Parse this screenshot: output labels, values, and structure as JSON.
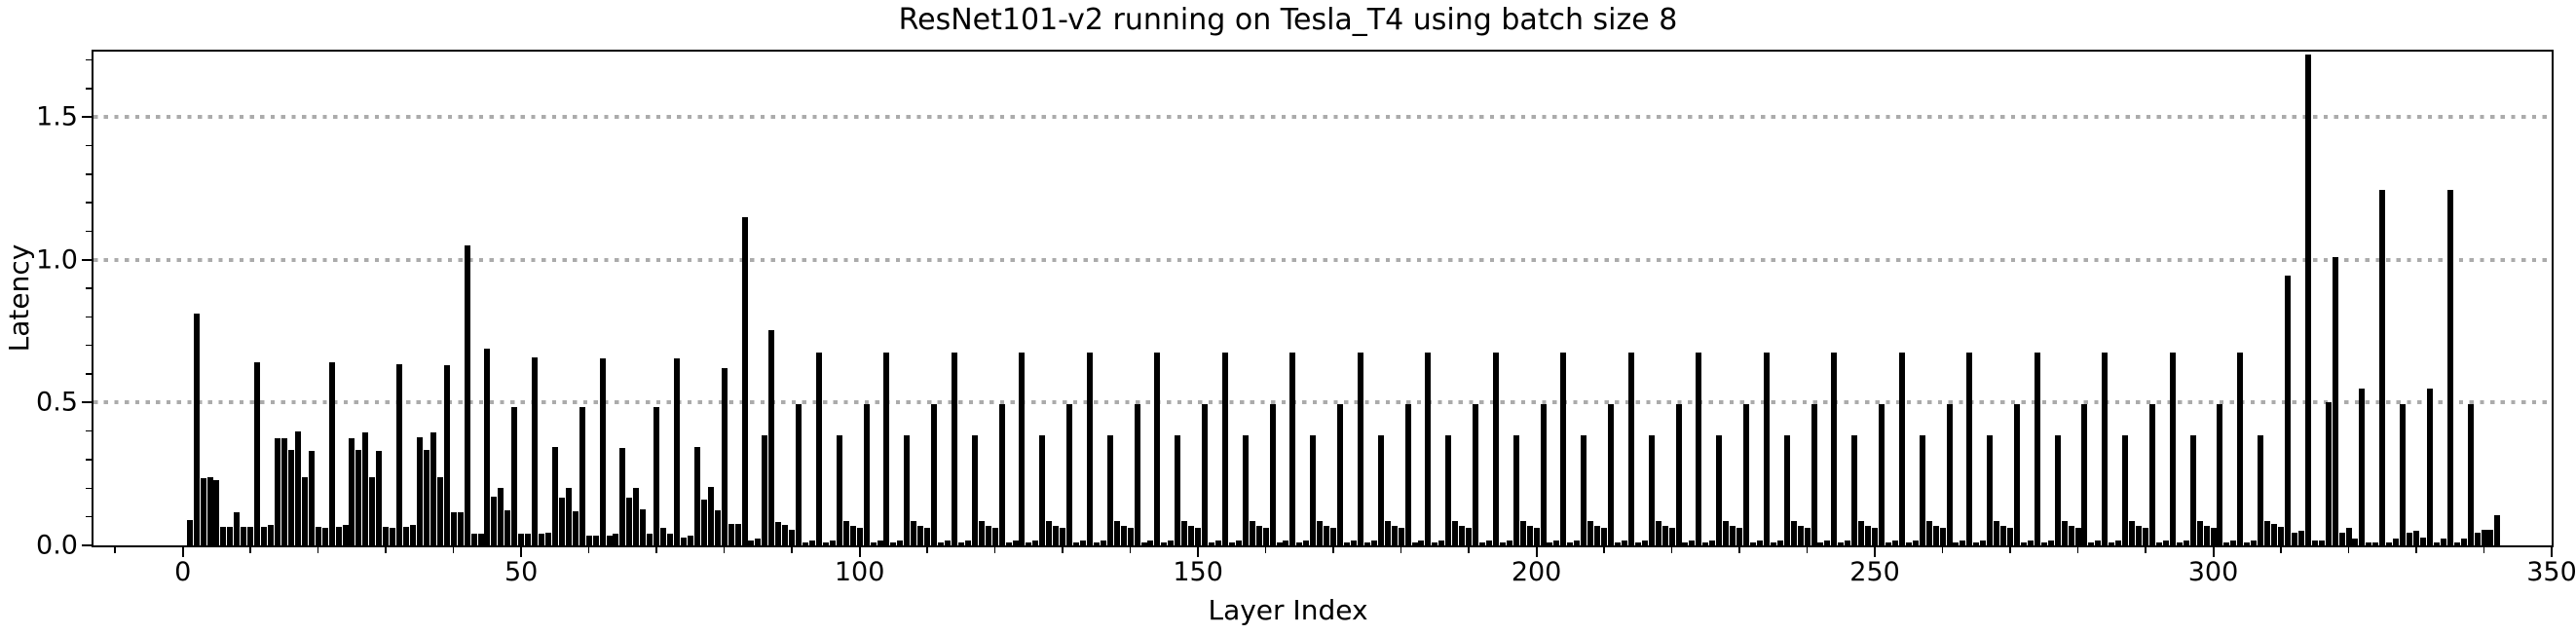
{
  "chart_data": {
    "type": "bar",
    "title": "ResNet101-v2 running on Tesla_T4 using batch size 8",
    "xlabel": "Layer Index",
    "ylabel": "Latency",
    "bar_color": "#000000",
    "grid_color": "#ababab",
    "frame_color": "#000000",
    "background": "#ffffff",
    "grid_style": "dotted",
    "legend": "none",
    "xlim": [
      -13.2,
      350
    ],
    "ylim": [
      0,
      1.729
    ],
    "x_tick_values": [
      0,
      50,
      100,
      150,
      200,
      250,
      300,
      350
    ],
    "x_tick_labels": [
      "0",
      "50",
      "100",
      "150",
      "200",
      "250",
      "300",
      "350"
    ],
    "x_minor_tick_step": 10,
    "y_tick_values": [
      0,
      0.5,
      1.0,
      1.5
    ],
    "y_tick_labels": [
      "0.0",
      "0.5",
      "1.0",
      "1.5"
    ],
    "y_minor_tick_step": 0.1,
    "gridline_values": [
      0.5,
      1.0,
      1.5
    ],
    "x_start_index": 0,
    "latency_by_layer_index": [
      0,
      0.09,
      0.81,
      0.235,
      0.24,
      0.23,
      0.065,
      0.065,
      0.115,
      0.065,
      0.065,
      0.64,
      0.065,
      0.072,
      0.375,
      0.375,
      0.335,
      0.398,
      0.24,
      0.33,
      0.065,
      0.06,
      0.64,
      0.065,
      0.072,
      0.375,
      0.335,
      0.397,
      0.24,
      0.33,
      0.065,
      0.06,
      0.636,
      0.065,
      0.072,
      0.377,
      0.333,
      0.397,
      0.24,
      0.63,
      0.115,
      0.115,
      1.05,
      0.04,
      0.04,
      0.69,
      0.17,
      0.2,
      0.122,
      0.485,
      0.04,
      0.04,
      0.657,
      0.04,
      0.045,
      0.343,
      0.168,
      0.2,
      0.118,
      0.483,
      0.034,
      0.034,
      0.656,
      0.034,
      0.04,
      0.34,
      0.168,
      0.2,
      0.125,
      0.04,
      0.485,
      0.06,
      0.04,
      0.656,
      0.027,
      0.035,
      0.344,
      0.16,
      0.203,
      0.122,
      0.62,
      0.074,
      0.074,
      1.15,
      0.017,
      0.023,
      0.384,
      0.755,
      0.082,
      0.07,
      0.055,
      0.496,
      0.011,
      0.017,
      0.674,
      0.011,
      0.017,
      0.385,
      0.084,
      0.068,
      0.06,
      0.495,
      0.011,
      0.017,
      0.674,
      0.011,
      0.017,
      0.385,
      0.084,
      0.068,
      0.06,
      0.495,
      0.011,
      0.017,
      0.674,
      0.011,
      0.017,
      0.385,
      0.084,
      0.068,
      0.06,
      0.495,
      0.011,
      0.017,
      0.674,
      0.011,
      0.017,
      0.385,
      0.084,
      0.068,
      0.06,
      0.495,
      0.011,
      0.017,
      0.674,
      0.011,
      0.017,
      0.385,
      0.084,
      0.068,
      0.06,
      0.495,
      0.011,
      0.017,
      0.674,
      0.011,
      0.017,
      0.385,
      0.084,
      0.068,
      0.06,
      0.495,
      0.011,
      0.017,
      0.674,
      0.011,
      0.017,
      0.385,
      0.084,
      0.068,
      0.06,
      0.495,
      0.011,
      0.017,
      0.674,
      0.011,
      0.017,
      0.385,
      0.084,
      0.068,
      0.06,
      0.495,
      0.011,
      0.017,
      0.674,
      0.011,
      0.017,
      0.385,
      0.084,
      0.068,
      0.06,
      0.495,
      0.011,
      0.017,
      0.674,
      0.011,
      0.017,
      0.385,
      0.084,
      0.068,
      0.06,
      0.495,
      0.011,
      0.017,
      0.674,
      0.011,
      0.017,
      0.385,
      0.084,
      0.068,
      0.06,
      0.495,
      0.011,
      0.017,
      0.674,
      0.011,
      0.017,
      0.385,
      0.084,
      0.068,
      0.06,
      0.495,
      0.011,
      0.017,
      0.674,
      0.011,
      0.017,
      0.385,
      0.084,
      0.068,
      0.06,
      0.495,
      0.011,
      0.017,
      0.674,
      0.011,
      0.017,
      0.385,
      0.084,
      0.068,
      0.06,
      0.495,
      0.011,
      0.017,
      0.674,
      0.011,
      0.017,
      0.385,
      0.084,
      0.068,
      0.06,
      0.495,
      0.011,
      0.017,
      0.674,
      0.011,
      0.017,
      0.385,
      0.084,
      0.068,
      0.06,
      0.495,
      0.011,
      0.017,
      0.674,
      0.011,
      0.017,
      0.385,
      0.084,
      0.068,
      0.06,
      0.495,
      0.011,
      0.017,
      0.674,
      0.011,
      0.017,
      0.385,
      0.084,
      0.068,
      0.06,
      0.495,
      0.011,
      0.017,
      0.674,
      0.011,
      0.017,
      0.385,
      0.084,
      0.068,
      0.06,
      0.495,
      0.011,
      0.017,
      0.674,
      0.011,
      0.017,
      0.385,
      0.084,
      0.068,
      0.06,
      0.495,
      0.011,
      0.017,
      0.674,
      0.011,
      0.017,
      0.385,
      0.084,
      0.068,
      0.06,
      0.495,
      0.011,
      0.017,
      0.675,
      0.011,
      0.017,
      0.384,
      0.085,
      0.074,
      0.066,
      0.944,
      0.045,
      0.05,
      1.72,
      0.017,
      0.017,
      0.5,
      1.008,
      0.043,
      0.06,
      0.023,
      0.549,
      0.011,
      0.011,
      1.244,
      0.011,
      0.023,
      0.493,
      0.043,
      0.05,
      0.028,
      0.549,
      0.011,
      0.023,
      1.244,
      0.011,
      0.023,
      0.493,
      0.043,
      0.055,
      0.055,
      0.105
    ]
  }
}
